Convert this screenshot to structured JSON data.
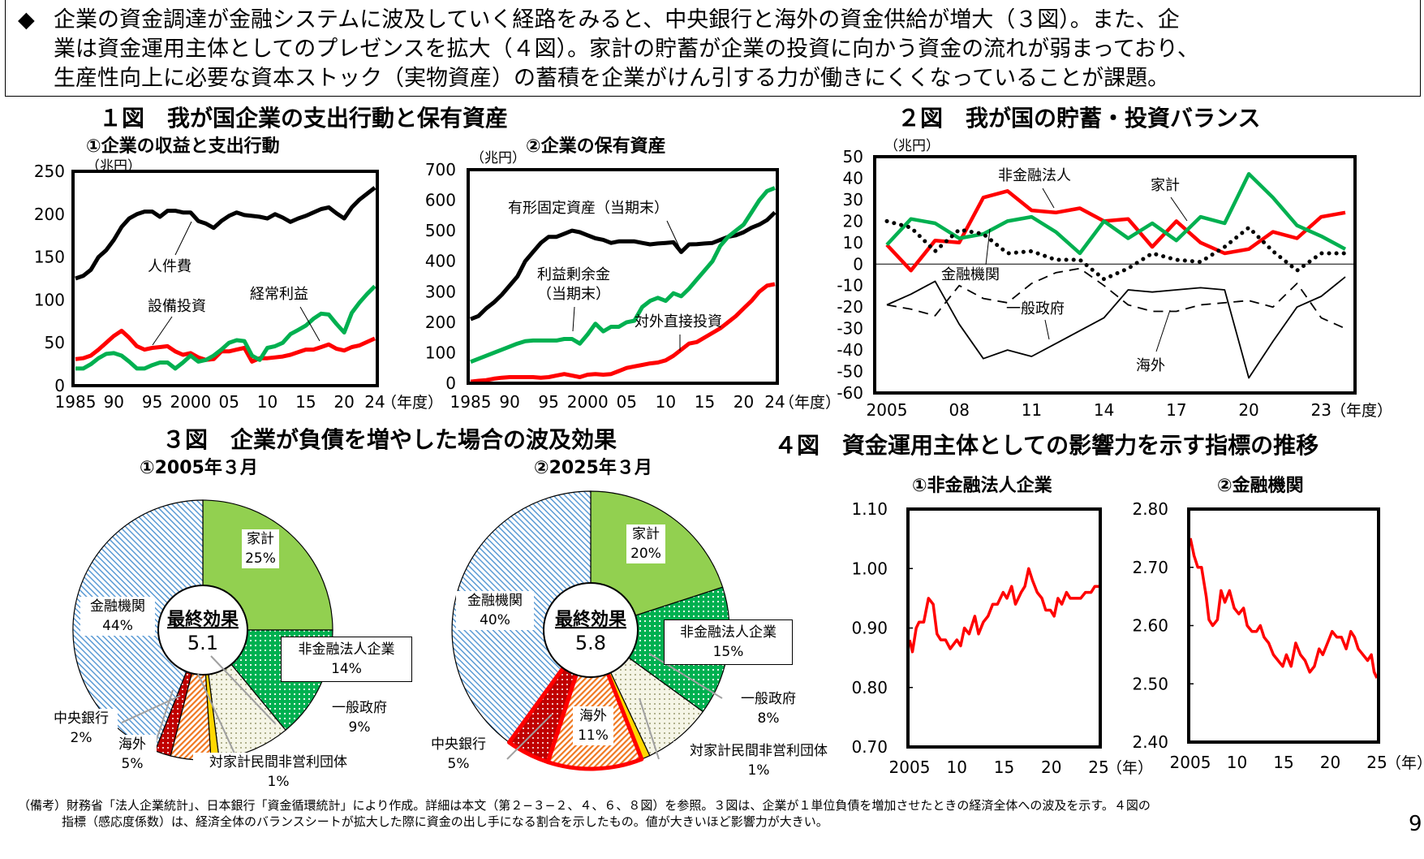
{
  "lead": {
    "bullet": "◆",
    "lines": [
      "企業の資金調達が金融システムに波及していく経路をみると、中央銀行と海外の資金供給が増大（３図）。また、企",
      "業は資金運用主体としてのプレゼンスを拡大（４図）。家計の貯蓄が企業の投資に向かう資金の流れが弱まっており、",
      "生産性向上に必要な資本ストック（実物資産）の蓄積を企業がけん引する力が働きにくくなっていることが課題。"
    ]
  },
  "fig1": {
    "title": "１図　我が国企業の支出行動と保有資産"
  },
  "fig3": {
    "title": "３図　企業が負債を増やした場合の波及効果"
  },
  "fig4": {
    "title": "４図　資金運用主体としての影響力を示す指標の推移"
  },
  "footnote": {
    "lines": [
      "（備考）財務省「法人企業統計」、日本銀行「資金循環統計」により作成。詳細は本文（第２−３−２、４、６、８図）を参照。３図は、企業が１単位負債を増加させたときの経済全体への波及を示す。４図の",
      "指標（感応度係数）は、経済全体のバランスシートが拡大した際に資金の出し手になる割合を示したもの。値が大きいほど影響力が大きい。"
    ]
  },
  "page_number": "9",
  "chart_data": [
    {
      "id": "c1",
      "type": "line",
      "title": "①企業の収益と支出行動",
      "ylabel": "（兆円）",
      "xlabel": "（年度）",
      "ylim": [
        0,
        250
      ],
      "yticks": [
        "0",
        "50",
        "100",
        "150",
        "200",
        "250"
      ],
      "xlim": [
        1985,
        2024
      ],
      "xticks": [
        {
          "v": 1985,
          "t": "1985"
        },
        {
          "v": 1990,
          "t": "90"
        },
        {
          "v": 1995,
          "t": "95"
        },
        {
          "v": 2000,
          "t": "2000"
        },
        {
          "v": 2005,
          "t": "05"
        },
        {
          "v": 2010,
          "t": "10"
        },
        {
          "v": 2015,
          "t": "15"
        },
        {
          "v": 2020,
          "t": "20"
        },
        {
          "v": 2024,
          "t": "24"
        }
      ],
      "x_start": 1985,
      "series": [
        {
          "name": "人件費",
          "color": "#000000",
          "values": [
            125,
            128,
            135,
            150,
            158,
            170,
            185,
            195,
            200,
            203,
            203,
            197,
            204,
            204,
            202,
            202,
            192,
            189,
            184,
            192,
            198,
            202,
            199,
            198,
            197,
            195,
            200,
            196,
            191,
            195,
            198,
            202,
            206,
            208,
            201,
            195,
            208,
            217,
            224,
            231
          ]
        },
        {
          "name": "設備投資",
          "color": "#ff0000",
          "values": [
            31,
            32,
            35,
            42,
            50,
            58,
            64,
            56,
            46,
            42,
            44,
            45,
            46,
            40,
            36,
            38,
            33,
            30,
            31,
            40,
            40,
            42,
            44,
            28,
            32,
            32,
            33,
            34,
            36,
            39,
            42,
            42,
            45,
            48,
            43,
            41,
            45,
            47,
            51,
            55
          ]
        },
        {
          "name": "経常利益",
          "color": "#00b050",
          "values": [
            20,
            20,
            25,
            32,
            37,
            38,
            35,
            28,
            20,
            20,
            24,
            27,
            27,
            20,
            27,
            35,
            28,
            30,
            35,
            42,
            50,
            53,
            52,
            35,
            30,
            44,
            46,
            50,
            60,
            65,
            70,
            78,
            84,
            83,
            72,
            62,
            85,
            97,
            107,
            116
          ]
        }
      ]
    },
    {
      "id": "c2",
      "type": "line",
      "title": "②企業の保有資産",
      "ylabel": "（兆円）",
      "xlabel": "（年度）",
      "ylim": [
        0,
        700
      ],
      "yticks": [
        "0",
        "100",
        "200",
        "300",
        "400",
        "500",
        "600",
        "700"
      ],
      "xlim": [
        1985,
        2024
      ],
      "xticks": [
        {
          "v": 1985,
          "t": "1985"
        },
        {
          "v": 1990,
          "t": "90"
        },
        {
          "v": 1995,
          "t": "95"
        },
        {
          "v": 2000,
          "t": "2000"
        },
        {
          "v": 2005,
          "t": "05"
        },
        {
          "v": 2010,
          "t": "10"
        },
        {
          "v": 2015,
          "t": "15"
        },
        {
          "v": 2020,
          "t": "20"
        },
        {
          "v": 2024,
          "t": "24"
        }
      ],
      "x_start": 1985,
      "series": [
        {
          "name": "有形固定資産（当期末）",
          "color": "#000000",
          "values": [
            210,
            220,
            245,
            265,
            290,
            320,
            350,
            400,
            430,
            460,
            480,
            480,
            490,
            500,
            495,
            485,
            475,
            470,
            460,
            465,
            465,
            465,
            460,
            455,
            458,
            460,
            462,
            430,
            455,
            456,
            458,
            460,
            470,
            480,
            485,
            495,
            510,
            520,
            535,
            560
          ]
        },
        {
          "name": "利益剰余金",
          "name2": "（当期末）",
          "color": "#00b050",
          "values": [
            70,
            80,
            90,
            100,
            110,
            120,
            130,
            138,
            140,
            140,
            140,
            140,
            145,
            145,
            130,
            160,
            195,
            170,
            185,
            185,
            200,
            205,
            250,
            270,
            280,
            270,
            295,
            285,
            310,
            340,
            370,
            400,
            450,
            480,
            500,
            520,
            560,
            600,
            630,
            640
          ]
        },
        {
          "name": "対外直接投資",
          "color": "#ff0000",
          "values": [
            5,
            8,
            10,
            15,
            18,
            20,
            20,
            20,
            20,
            18,
            20,
            25,
            30,
            25,
            20,
            28,
            30,
            28,
            30,
            40,
            50,
            55,
            60,
            65,
            68,
            75,
            90,
            110,
            130,
            135,
            150,
            165,
            180,
            200,
            220,
            245,
            270,
            300,
            320,
            325
          ]
        }
      ]
    },
    {
      "id": "f2",
      "type": "line",
      "title": "２図　我が国の貯蓄・投資バランス",
      "ylabel": "（兆円）",
      "xlabel": "（年度）",
      "ylim": [
        -60,
        50
      ],
      "yticks": [
        "-60",
        "-50",
        "-40",
        "-30",
        "-20",
        "-10",
        "0",
        "10",
        "20",
        "30",
        "40",
        "50"
      ],
      "xlim": [
        2005,
        2024
      ],
      "xticks": [
        {
          "v": 2005,
          "t": "2005"
        },
        {
          "v": 2008,
          "t": "08"
        },
        {
          "v": 2011,
          "t": "11"
        },
        {
          "v": 2014,
          "t": "14"
        },
        {
          "v": 2017,
          "t": "17"
        },
        {
          "v": 2020,
          "t": "20"
        },
        {
          "v": 2023,
          "t": "23"
        }
      ],
      "x_start": 2005,
      "series": [
        {
          "name": "非金融法人",
          "color": "#ff0000",
          "style": "thick",
          "values": [
            9,
            -3,
            11,
            10,
            31,
            34,
            25,
            24,
            26,
            20,
            21,
            8,
            20,
            10,
            5,
            7,
            15,
            12,
            22,
            24
          ]
        },
        {
          "name": "家計",
          "color": "#00b050",
          "style": "thick",
          "values": [
            9,
            21,
            19,
            12,
            14,
            20,
            22,
            15,
            5,
            20,
            12,
            19,
            11,
            22,
            19,
            42,
            31,
            18,
            13,
            7
          ]
        },
        {
          "name": "金融機関",
          "color": "#000000",
          "style": "dotted",
          "values": [
            20,
            17,
            6,
            16,
            14,
            5,
            6,
            2,
            2,
            -7,
            -2,
            5,
            2,
            1,
            8,
            17,
            6,
            -3,
            5,
            5
          ]
        },
        {
          "name": "一般政府",
          "color": "#000000",
          "style": "dashed",
          "values": [
            -19,
            -21,
            -24,
            -10,
            -16,
            -18,
            -9,
            -4,
            -2,
            -10,
            -19,
            -22,
            -22,
            -19,
            -18,
            -17,
            -20,
            -9,
            -25,
            -30
          ]
        },
        {
          "name": "海外",
          "color": "#000000",
          "style": "thin",
          "values": [
            -19,
            -14,
            -8,
            -28,
            -44,
            -40,
            -43,
            -37,
            -31,
            -25,
            -12,
            -13,
            -12,
            -11,
            -12,
            -53,
            -36,
            -20,
            -15,
            -6
          ]
        }
      ]
    },
    {
      "id": "f4a",
      "type": "line",
      "title": "①非金融法人企業",
      "xlabel": "（年）",
      "ylim": [
        0.7,
        1.1
      ],
      "yticks": [
        "0.70",
        "0.80",
        "0.90",
        "1.00",
        "1.10"
      ],
      "xlim": [
        2005,
        2025
      ],
      "xticks": [
        {
          "v": 2005,
          "t": "2005"
        },
        {
          "v": 2010,
          "t": "10"
        },
        {
          "v": 2015,
          "t": "15"
        },
        {
          "v": 2020,
          "t": "20"
        },
        {
          "v": 2025,
          "t": "25"
        }
      ],
      "series": [
        {
          "color": "#ff0000",
          "x": [
            2005.0,
            2005.3,
            2005.7,
            2006.0,
            2006.5,
            2007.0,
            2007.5,
            2007.9,
            2008.3,
            2008.8,
            2009.3,
            2010.0,
            2010.4,
            2010.8,
            2011.3,
            2011.9,
            2012.3,
            2012.8,
            2013.3,
            2013.8,
            2014.3,
            2014.9,
            2015.3,
            2015.8,
            2016.2,
            2016.8,
            2017.2,
            2017.6,
            2018.0,
            2018.5,
            2019.0,
            2019.4,
            2019.9,
            2020.3,
            2020.7,
            2021.1,
            2021.6,
            2022.0,
            2022.6,
            2023.1,
            2023.6,
            2024.2,
            2024.6,
            2025.0
          ],
          "values": [
            0.88,
            0.86,
            0.9,
            0.91,
            0.91,
            0.95,
            0.94,
            0.89,
            0.88,
            0.88,
            0.865,
            0.88,
            0.87,
            0.9,
            0.89,
            0.92,
            0.89,
            0.91,
            0.92,
            0.94,
            0.94,
            0.96,
            0.95,
            0.97,
            0.94,
            0.96,
            0.97,
            1.0,
            0.98,
            0.96,
            0.95,
            0.93,
            0.93,
            0.92,
            0.95,
            0.94,
            0.96,
            0.95,
            0.95,
            0.95,
            0.96,
            0.96,
            0.97,
            0.97
          ]
        }
      ]
    },
    {
      "id": "f4b",
      "type": "line",
      "title": "②金融機関",
      "xlabel": "（年）",
      "ylim": [
        2.4,
        2.8
      ],
      "yticks": [
        "2.40",
        "2.50",
        "2.60",
        "2.70",
        "2.80"
      ],
      "xlim": [
        2005,
        2025
      ],
      "xticks": [
        {
          "v": 2005,
          "t": "2005"
        },
        {
          "v": 2010,
          "t": "10"
        },
        {
          "v": 2015,
          "t": "15"
        },
        {
          "v": 2020,
          "t": "20"
        },
        {
          "v": 2025,
          "t": "25"
        }
      ],
      "series": [
        {
          "color": "#ff0000",
          "x": [
            2005.0,
            2005.4,
            2005.8,
            2006.2,
            2006.7,
            2007.0,
            2007.4,
            2007.9,
            2008.3,
            2008.7,
            2009.2,
            2009.7,
            2010.2,
            2010.7,
            2011.1,
            2011.6,
            2012.1,
            2012.5,
            2012.9,
            2013.4,
            2013.9,
            2014.4,
            2014.9,
            2015.3,
            2015.8,
            2016.3,
            2016.8,
            2017.3,
            2017.8,
            2018.3,
            2018.8,
            2019.2,
            2019.7,
            2020.2,
            2020.7,
            2021.2,
            2021.7,
            2022.2,
            2022.6,
            2023.0,
            2023.5,
            2024.0,
            2024.4,
            2024.7,
            2025.0
          ],
          "values": [
            2.75,
            2.72,
            2.7,
            2.7,
            2.65,
            2.61,
            2.6,
            2.61,
            2.66,
            2.64,
            2.66,
            2.63,
            2.62,
            2.63,
            2.6,
            2.59,
            2.59,
            2.6,
            2.58,
            2.57,
            2.55,
            2.54,
            2.53,
            2.55,
            2.53,
            2.57,
            2.55,
            2.54,
            2.52,
            2.53,
            2.56,
            2.55,
            2.57,
            2.59,
            2.58,
            2.58,
            2.56,
            2.59,
            2.58,
            2.56,
            2.55,
            2.54,
            2.55,
            2.52,
            2.51
          ]
        }
      ]
    },
    {
      "id": "p1",
      "type": "pie",
      "title": "①2005年３月",
      "center_label": "最終効果",
      "center_value": "5.1",
      "slices": [
        {
          "name": "家計",
          "value": 25,
          "label": "25%",
          "color": "#92d050",
          "pattern": "solid"
        },
        {
          "name": "非金融法人企業",
          "value": 14,
          "label": "14%",
          "color": "#00b050",
          "pattern": "dots"
        },
        {
          "name": "一般政府",
          "value": 9,
          "label": "9%",
          "color": "#e6e6c8",
          "pattern": "dots"
        },
        {
          "name": "対家計民間非営利団体",
          "value": 1,
          "label": "1%",
          "color": "#ffd700",
          "pattern": "solid"
        },
        {
          "name": "海外",
          "value": 5,
          "label": "5%",
          "color": "#f07820",
          "pattern": "hatch"
        },
        {
          "name": "中央銀行",
          "value": 2,
          "label": "2%",
          "color": "#c00000",
          "pattern": "dots"
        },
        {
          "name": "金融機関",
          "value": 44,
          "label": "44%",
          "color": "#5b9bd5",
          "pattern": "hatch"
        }
      ]
    },
    {
      "id": "p2",
      "type": "pie",
      "title": "②2025年３月",
      "center_label": "最終効果",
      "center_value": "5.8",
      "highlight": [
        "海外",
        "中央銀行"
      ],
      "highlight_color": "#ff0000",
      "slices": [
        {
          "name": "家計",
          "value": 20,
          "label": "20%",
          "color": "#92d050",
          "pattern": "solid"
        },
        {
          "name": "非金融法人企業",
          "value": 15,
          "label": "15%",
          "color": "#00b050",
          "pattern": "dots"
        },
        {
          "name": "一般政府",
          "value": 8,
          "label": "8%",
          "color": "#e6e6c8",
          "pattern": "dots"
        },
        {
          "name": "対家計民間非営利団体",
          "value": 1,
          "label": "1%",
          "color": "#ffd700",
          "pattern": "solid"
        },
        {
          "name": "海外",
          "value": 11,
          "label": "11%",
          "color": "#f07820",
          "pattern": "hatch"
        },
        {
          "name": "中央銀行",
          "value": 5,
          "label": "5%",
          "color": "#c00000",
          "pattern": "dots"
        },
        {
          "name": "金融機関",
          "value": 40,
          "label": "40%",
          "color": "#5b9bd5",
          "pattern": "hatch"
        }
      ]
    }
  ]
}
